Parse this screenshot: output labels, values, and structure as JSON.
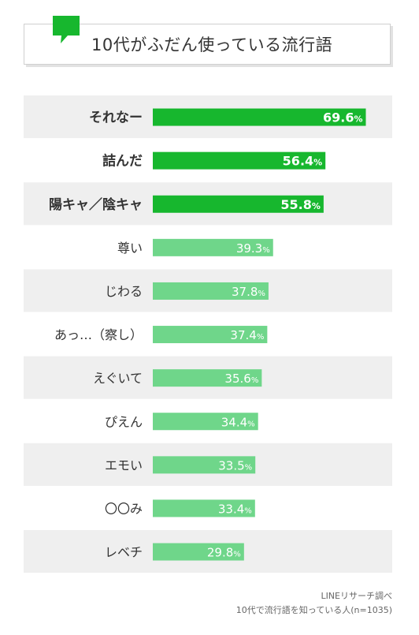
{
  "title": "10代がふだん使っている流行語",
  "source": {
    "line1": "LINEリサーチ調べ",
    "line2": "10代で流行語を知っている人(n=1035)"
  },
  "colors": {
    "top_bar": "#17b72e",
    "bar": "#6fd68a",
    "row_stripe": "#efefef",
    "bubble": "#17b72e",
    "label_text": "#333333"
  },
  "chart_data": {
    "type": "bar",
    "orientation": "horizontal",
    "value_suffix": "%",
    "xlim": [
      0,
      100
    ],
    "highlighted_count": 3,
    "categories": [
      "それなー",
      "詰んだ",
      "陽キャ／陰キャ",
      "尊い",
      "じわる",
      "あっ…（察し）",
      "えぐいて",
      "ぴえん",
      "エモい",
      "〇〇み",
      "レベチ"
    ],
    "values": [
      69.6,
      56.4,
      55.8,
      39.3,
      37.8,
      37.4,
      35.6,
      34.4,
      33.5,
      33.4,
      29.8
    ]
  }
}
